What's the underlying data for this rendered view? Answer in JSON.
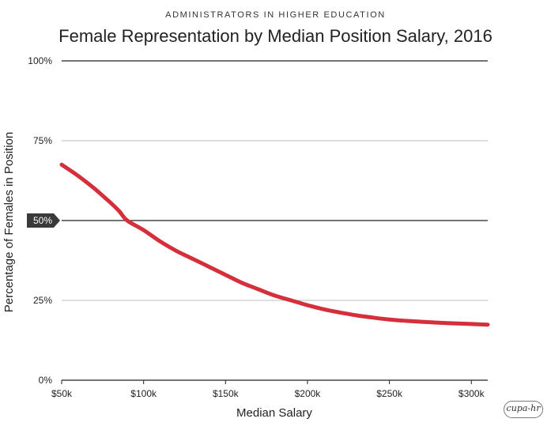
{
  "chart_data": {
    "type": "line",
    "supertitle": "ADMINISTRATORS IN HIGHER EDUCATION",
    "title": "Female Representation by Median Position Salary, 2016",
    "xlabel": "Median Salary",
    "ylabel": "Percentage of Females in Position",
    "xlim": [
      50000,
      310000
    ],
    "ylim": [
      0,
      100
    ],
    "x_ticks": [
      50000,
      100000,
      150000,
      200000,
      250000,
      300000
    ],
    "x_tick_labels": [
      "$50k",
      "$100k",
      "$150k",
      "$200k",
      "$250k",
      "$300k"
    ],
    "y_ticks": [
      0,
      25,
      50,
      75,
      100
    ],
    "y_tick_labels": [
      "0%",
      "25%",
      "50%",
      "75%",
      "100%"
    ],
    "highlight_tick": "50%",
    "grid": "horizontal",
    "series": [
      {
        "color": "#d42f3a",
        "x": [
          50000,
          60000,
          70000,
          80000,
          85000,
          90000,
          100000,
          110000,
          120000,
          130000,
          140000,
          150000,
          160000,
          170000,
          180000,
          190000,
          200000,
          210000,
          220000,
          230000,
          240000,
          250000,
          260000,
          270000,
          280000,
          290000,
          300000,
          310000
        ],
        "y": [
          67.5,
          64,
          60,
          55.5,
          53,
          50,
          47,
          43.5,
          40.5,
          38,
          35.5,
          33,
          30.5,
          28.5,
          26.5,
          25,
          23.5,
          22.2,
          21.2,
          20.3,
          19.6,
          19,
          18.6,
          18.3,
          18,
          17.8,
          17.6,
          17.4
        ]
      }
    ]
  },
  "logo": {
    "text": "cupa-hr"
  }
}
